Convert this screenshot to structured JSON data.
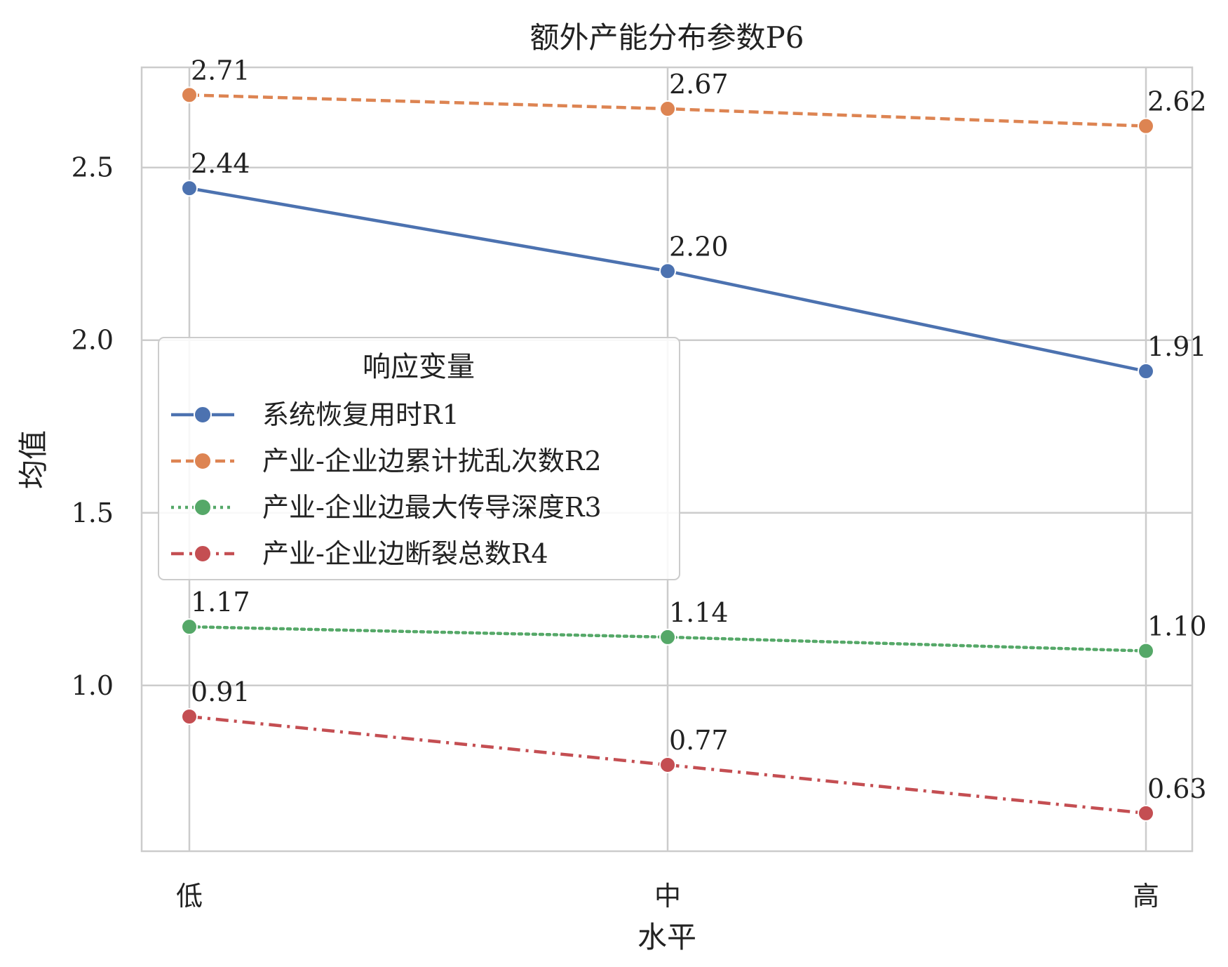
{
  "chart_data": {
    "type": "line",
    "title": "额外产能分布参数P6",
    "xlabel": "水平",
    "ylabel": "均值",
    "categories": [
      "低",
      "中",
      "高"
    ],
    "ylim": [
      0.52,
      2.79
    ],
    "yticks": [
      1.0,
      1.5,
      2.0,
      2.5
    ],
    "ytick_labels": [
      "1.0",
      "1.5",
      "2.0",
      "2.5"
    ],
    "grid": true,
    "legend": {
      "title": "响应变量",
      "placement": "center-left"
    },
    "series": [
      {
        "name": "系统恢复用时R1",
        "values": [
          2.44,
          2.2,
          1.91
        ],
        "labels": [
          "2.44",
          "2.20",
          "1.91"
        ],
        "color": "#4c72b0",
        "dash": "solid"
      },
      {
        "name": "产业-企业边累计扰乱次数R2",
        "values": [
          2.71,
          2.67,
          2.62
        ],
        "labels": [
          "2.71",
          "2.67",
          "2.62"
        ],
        "color": "#dd8452",
        "dash": "dashed"
      },
      {
        "name": "产业-企业边最大传导深度R3",
        "values": [
          1.17,
          1.14,
          1.1
        ],
        "labels": [
          "1.17",
          "1.14",
          "1.10"
        ],
        "color": "#55a868",
        "dash": "dotted"
      },
      {
        "name": "产业-企业边断裂总数R4",
        "values": [
          0.91,
          0.77,
          0.63
        ],
        "labels": [
          "0.91",
          "0.77",
          "0.63"
        ],
        "color": "#c44e52",
        "dash": "dashdot"
      }
    ]
  }
}
